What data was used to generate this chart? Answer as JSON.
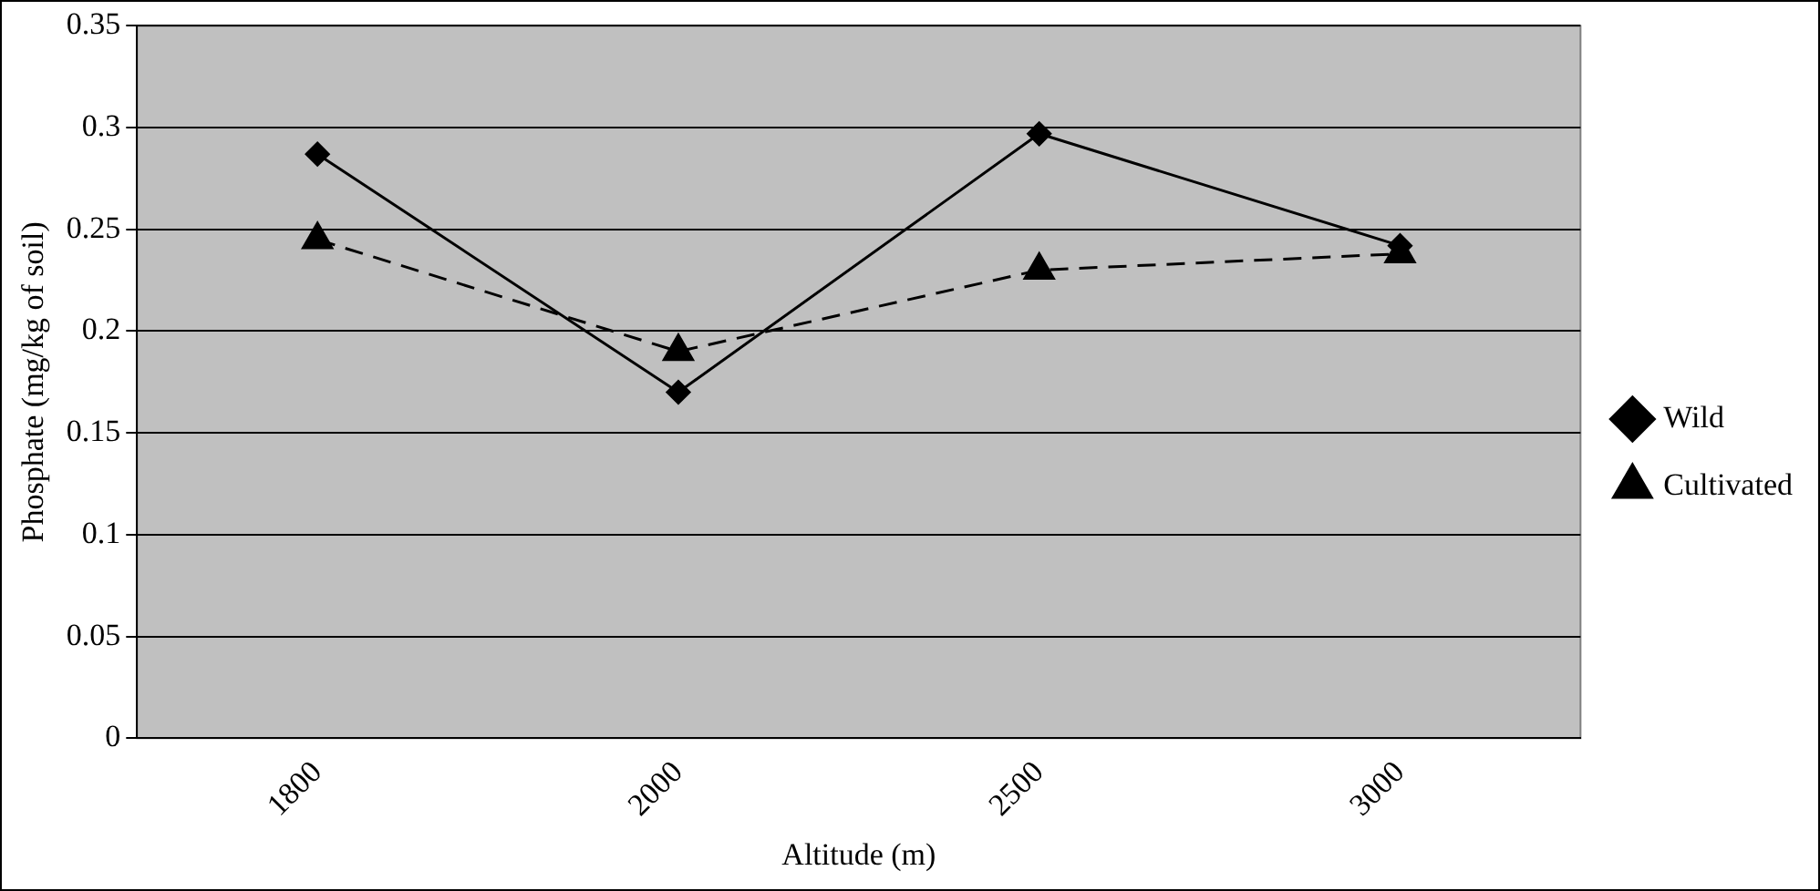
{
  "chart_data": {
    "type": "line",
    "xlabel": "Altitude (m)",
    "ylabel": "Phosphate (mg/kg of soil)",
    "categories": [
      "1800",
      "2000",
      "2500",
      "3000"
    ],
    "series": [
      {
        "name": "Wild",
        "color": "#000000",
        "values": [
          0.287,
          0.17,
          0.297,
          0.242
        ],
        "marker": "diamond",
        "line_style": "solid"
      },
      {
        "name": "Cultivated",
        "color": "#000000",
        "values": [
          0.245,
          0.19,
          0.23,
          0.238
        ],
        "marker": "triangle",
        "line_style": "dashed"
      }
    ],
    "ylim": [
      0,
      0.35
    ],
    "yticks": [
      0,
      0.05,
      0.1,
      0.15,
      0.2,
      0.25,
      0.3,
      0.35
    ],
    "grid": "y",
    "legend": "right"
  }
}
